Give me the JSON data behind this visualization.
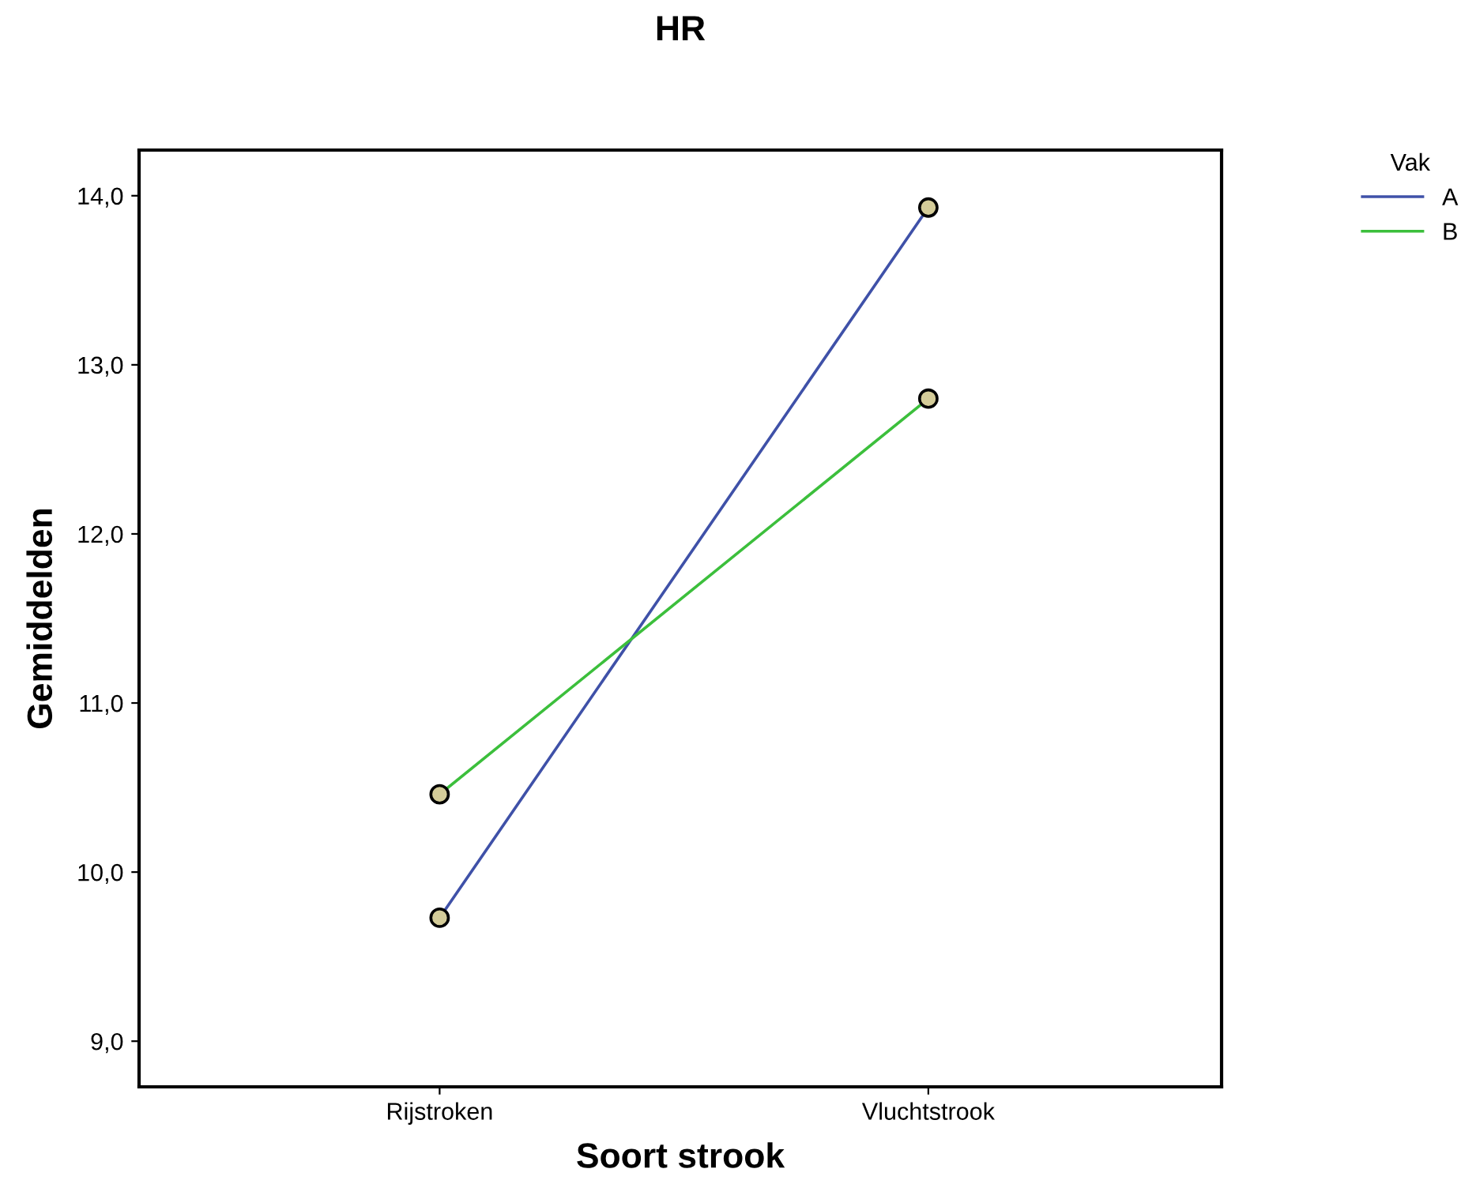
{
  "chart_data": {
    "type": "line",
    "title": "HR",
    "xlabel": "Soort strook",
    "ylabel": "Gemiddelden",
    "legend_title": "Vak",
    "categories": [
      "Rijstroken",
      "Vluchtstrook"
    ],
    "series": [
      {
        "name": "A",
        "color": "#3f51a8",
        "values": [
          9.73,
          13.93
        ]
      },
      {
        "name": "B",
        "color": "#3cbf3c",
        "values": [
          10.46,
          12.8
        ]
      }
    ],
    "ylim": [
      8.73,
      14.27
    ],
    "yticks": [
      {
        "value": 9,
        "label": "9,0"
      },
      {
        "value": 10,
        "label": "10,0"
      },
      {
        "value": 11,
        "label": "11,0"
      },
      {
        "value": 12,
        "label": "12,0"
      },
      {
        "value": 13,
        "label": "13,0"
      },
      {
        "value": 14,
        "label": "14,0"
      }
    ],
    "marker": "circle",
    "line_style": "solid",
    "grid": false,
    "legend": "top right"
  }
}
